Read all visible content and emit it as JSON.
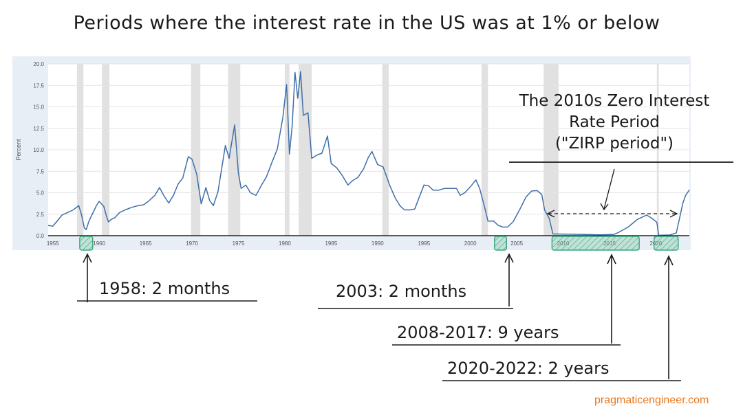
{
  "title": "Periods where the interest rate in the US was at 1% or below",
  "chart_data": {
    "type": "line",
    "ylabel": "Percent",
    "xlim": [
      1954.5,
      2023.6
    ],
    "ylim": [
      0,
      20
    ],
    "x_ticks": [
      "1955",
      "1960",
      "1965",
      "1970",
      "1975",
      "1980",
      "1985",
      "1990",
      "1995",
      "2000",
      "2005",
      "2010",
      "2015",
      "2020"
    ],
    "y_ticks": [
      "0.0",
      "2.5",
      "5.0",
      "7.5",
      "10.0",
      "12.5",
      "15.0",
      "17.5",
      "20.0"
    ],
    "grid": "horizontal",
    "line_color": "#3e6ea8",
    "recession_color": "#e1e1e1",
    "highlight_color": "#3aa57a",
    "recessions": [
      [
        1957.6,
        1958.3
      ],
      [
        1960.3,
        1961.1
      ],
      [
        1969.9,
        1970.9
      ],
      [
        1973.9,
        1975.2
      ],
      [
        1980.0,
        1980.5
      ],
      [
        1981.5,
        1982.9
      ],
      [
        1990.5,
        1991.2
      ],
      [
        2001.2,
        2001.9
      ],
      [
        2007.9,
        2009.5
      ],
      [
        2020.1,
        2020.3
      ]
    ],
    "highlights": [
      [
        1957.9,
        1959.3
      ],
      [
        2002.6,
        2003.9
      ],
      [
        2008.8,
        2018.2
      ],
      [
        2019.8,
        2022.4
      ]
    ],
    "series": [
      {
        "points": [
          [
            1954.5,
            1.2
          ],
          [
            1955.0,
            1.1
          ],
          [
            1955.4,
            1.6
          ],
          [
            1956.0,
            2.4
          ],
          [
            1956.6,
            2.7
          ],
          [
            1957.2,
            3.0
          ],
          [
            1957.8,
            3.5
          ],
          [
            1958.1,
            2.4
          ],
          [
            1958.4,
            0.9
          ],
          [
            1958.6,
            0.7
          ],
          [
            1958.9,
            1.7
          ],
          [
            1959.3,
            2.6
          ],
          [
            1959.7,
            3.5
          ],
          [
            1960.0,
            4.0
          ],
          [
            1960.5,
            3.4
          ],
          [
            1960.8,
            2.2
          ],
          [
            1961.0,
            1.6
          ],
          [
            1961.3,
            1.9
          ],
          [
            1961.7,
            2.1
          ],
          [
            1962.2,
            2.7
          ],
          [
            1962.8,
            3.0
          ],
          [
            1963.5,
            3.3
          ],
          [
            1964.2,
            3.5
          ],
          [
            1964.8,
            3.6
          ],
          [
            1965.3,
            4.0
          ],
          [
            1966.0,
            4.7
          ],
          [
            1966.5,
            5.6
          ],
          [
            1967.0,
            4.6
          ],
          [
            1967.5,
            3.8
          ],
          [
            1968.0,
            4.7
          ],
          [
            1968.5,
            6.0
          ],
          [
            1969.0,
            6.7
          ],
          [
            1969.6,
            9.2
          ],
          [
            1970.0,
            8.9
          ],
          [
            1970.5,
            7.2
          ],
          [
            1971.0,
            3.7
          ],
          [
            1971.5,
            5.6
          ],
          [
            1971.9,
            4.1
          ],
          [
            1972.3,
            3.5
          ],
          [
            1972.8,
            5.1
          ],
          [
            1973.3,
            8.5
          ],
          [
            1973.6,
            10.5
          ],
          [
            1974.0,
            9.0
          ],
          [
            1974.6,
            12.9
          ],
          [
            1975.0,
            7.3
          ],
          [
            1975.3,
            5.5
          ],
          [
            1975.8,
            5.9
          ],
          [
            1976.3,
            5.0
          ],
          [
            1976.9,
            4.7
          ],
          [
            1977.5,
            5.9
          ],
          [
            1978.0,
            6.8
          ],
          [
            1978.6,
            8.5
          ],
          [
            1979.2,
            10.1
          ],
          [
            1979.8,
            13.8
          ],
          [
            1980.2,
            17.6
          ],
          [
            1980.5,
            9.5
          ],
          [
            1980.8,
            12.8
          ],
          [
            1981.1,
            19.0
          ],
          [
            1981.4,
            16.0
          ],
          [
            1981.7,
            19.1
          ],
          [
            1982.0,
            14.0
          ],
          [
            1982.5,
            14.3
          ],
          [
            1982.9,
            9.0
          ],
          [
            1983.5,
            9.4
          ],
          [
            1984.0,
            9.6
          ],
          [
            1984.6,
            11.6
          ],
          [
            1985.0,
            8.4
          ],
          [
            1985.6,
            7.9
          ],
          [
            1986.2,
            7.0
          ],
          [
            1986.8,
            5.9
          ],
          [
            1987.3,
            6.4
          ],
          [
            1987.9,
            6.8
          ],
          [
            1988.5,
            7.8
          ],
          [
            1989.0,
            9.1
          ],
          [
            1989.4,
            9.8
          ],
          [
            1990.0,
            8.3
          ],
          [
            1990.6,
            8.0
          ],
          [
            1991.3,
            5.9
          ],
          [
            1991.9,
            4.4
          ],
          [
            1992.4,
            3.5
          ],
          [
            1992.9,
            3.0
          ],
          [
            1993.5,
            3.0
          ],
          [
            1994.0,
            3.1
          ],
          [
            1994.5,
            4.5
          ],
          [
            1995.0,
            5.9
          ],
          [
            1995.5,
            5.8
          ],
          [
            1996.0,
            5.3
          ],
          [
            1996.6,
            5.3
          ],
          [
            1997.2,
            5.5
          ],
          [
            1997.9,
            5.5
          ],
          [
            1998.5,
            5.5
          ],
          [
            1998.9,
            4.7
          ],
          [
            1999.4,
            5.0
          ],
          [
            2000.0,
            5.7
          ],
          [
            2000.6,
            6.5
          ],
          [
            2001.0,
            5.5
          ],
          [
            2001.5,
            3.5
          ],
          [
            2001.9,
            1.7
          ],
          [
            2002.5,
            1.7
          ],
          [
            2003.0,
            1.2
          ],
          [
            2003.5,
            1.0
          ],
          [
            2004.0,
            1.0
          ],
          [
            2004.6,
            1.6
          ],
          [
            2005.3,
            3.0
          ],
          [
            2006.0,
            4.5
          ],
          [
            2006.6,
            5.2
          ],
          [
            2007.2,
            5.25
          ],
          [
            2007.7,
            4.8
          ],
          [
            2008.0,
            3.0
          ],
          [
            2008.5,
            2.0
          ],
          [
            2008.9,
            0.2
          ],
          [
            2010.0,
            0.18
          ],
          [
            2012.0,
            0.15
          ],
          [
            2014.0,
            0.1
          ],
          [
            2015.5,
            0.15
          ],
          [
            2016.0,
            0.4
          ],
          [
            2017.0,
            1.0
          ],
          [
            2018.0,
            1.9
          ],
          [
            2019.0,
            2.4
          ],
          [
            2019.6,
            2.0
          ],
          [
            2020.1,
            1.55
          ],
          [
            2020.3,
            0.05
          ],
          [
            2021.5,
            0.08
          ],
          [
            2022.2,
            0.33
          ],
          [
            2022.6,
            2.3
          ],
          [
            2022.9,
            3.8
          ],
          [
            2023.2,
            4.7
          ],
          [
            2023.6,
            5.33
          ]
        ]
      }
    ]
  },
  "annotations": {
    "zirp_lines": [
      "The 2010s Zero Interest",
      "Rate Period",
      "(\"ZIRP period\")"
    ],
    "callouts": {
      "c1958": "1958: 2 months",
      "c2003": "2003: 2 months",
      "c2008": "2008-2017: 9 years",
      "c2020": "2020-2022: 2 years"
    }
  },
  "source": "pragmaticengineer.com"
}
